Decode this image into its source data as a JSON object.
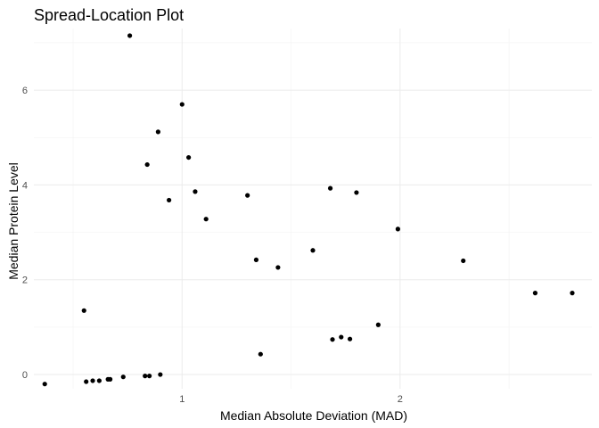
{
  "chart_data": {
    "type": "scatter",
    "title": "Spread-Location Plot",
    "xlabel": "Median Absolute Deviation (MAD)",
    "ylabel": "Median Protein Level",
    "xlim": [
      0.32,
      2.88
    ],
    "ylim": [
      -0.3,
      7.3
    ],
    "x_ticks": [
      1,
      2
    ],
    "y_ticks": [
      0,
      2,
      4,
      6
    ],
    "grid": true,
    "legend": "none",
    "point_color": "#000000",
    "points": [
      {
        "x": 0.37,
        "y": -0.2
      },
      {
        "x": 0.55,
        "y": 1.35
      },
      {
        "x": 0.56,
        "y": -0.15
      },
      {
        "x": 0.59,
        "y": -0.13
      },
      {
        "x": 0.62,
        "y": -0.13
      },
      {
        "x": 0.66,
        "y": -0.1
      },
      {
        "x": 0.67,
        "y": -0.1
      },
      {
        "x": 0.73,
        "y": -0.05
      },
      {
        "x": 0.76,
        "y": 7.15
      },
      {
        "x": 0.83,
        "y": -0.03
      },
      {
        "x": 0.84,
        "y": 4.43
      },
      {
        "x": 0.85,
        "y": -0.03
      },
      {
        "x": 0.89,
        "y": 5.12
      },
      {
        "x": 0.9,
        "y": 0.0
      },
      {
        "x": 0.94,
        "y": 3.68
      },
      {
        "x": 1.0,
        "y": 5.7
      },
      {
        "x": 1.03,
        "y": 4.58
      },
      {
        "x": 1.06,
        "y": 3.86
      },
      {
        "x": 1.11,
        "y": 3.28
      },
      {
        "x": 1.3,
        "y": 3.78
      },
      {
        "x": 1.34,
        "y": 2.42
      },
      {
        "x": 1.36,
        "y": 0.43
      },
      {
        "x": 1.44,
        "y": 2.26
      },
      {
        "x": 1.6,
        "y": 2.62
      },
      {
        "x": 1.68,
        "y": 3.93
      },
      {
        "x": 1.69,
        "y": 0.74
      },
      {
        "x": 1.73,
        "y": 0.79
      },
      {
        "x": 1.77,
        "y": 0.75
      },
      {
        "x": 1.8,
        "y": 3.84
      },
      {
        "x": 1.9,
        "y": 1.05
      },
      {
        "x": 1.99,
        "y": 3.07
      },
      {
        "x": 2.29,
        "y": 2.4
      },
      {
        "x": 2.62,
        "y": 1.72
      },
      {
        "x": 2.79,
        "y": 1.72
      }
    ]
  }
}
